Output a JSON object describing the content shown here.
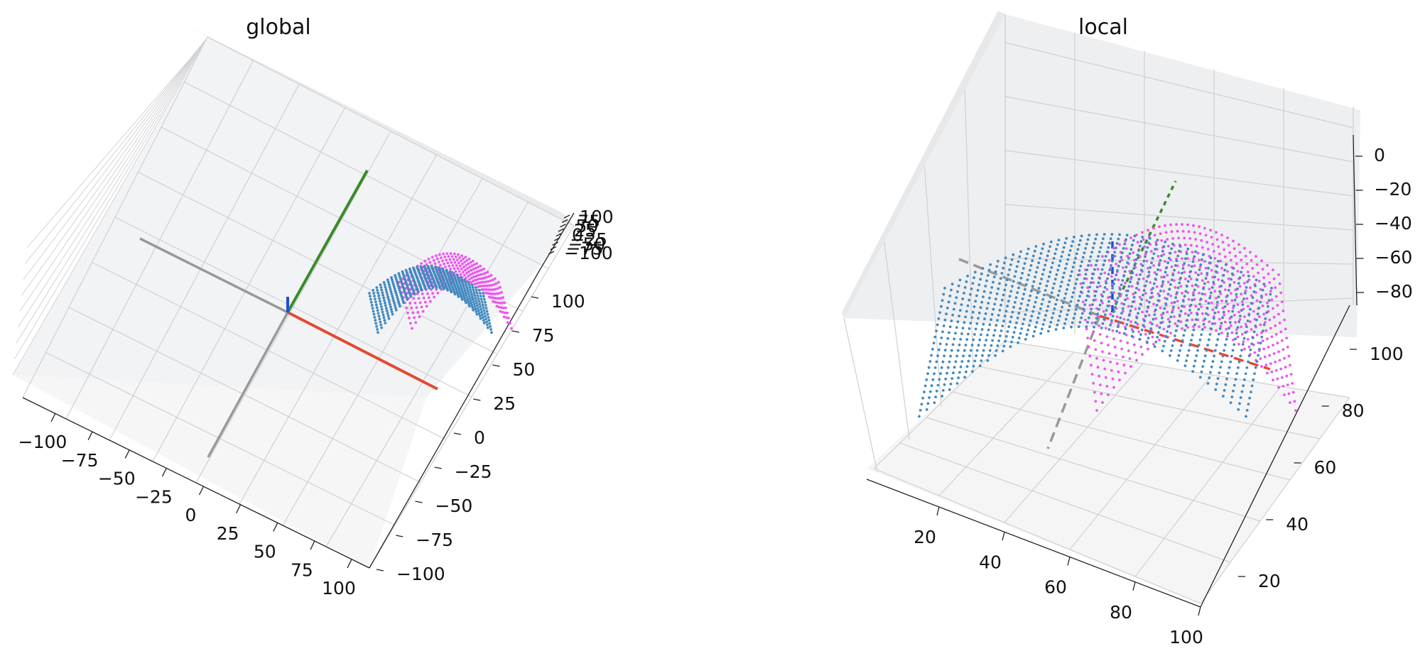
{
  "chart_data": [
    {
      "type": "scatter",
      "title": "global",
      "projection": "3d",
      "grid": true,
      "x_ticks": [
        "−100",
        "−75",
        "−50",
        "−25",
        "0",
        "25",
        "50",
        "75",
        "100"
      ],
      "y_ticks": [
        "−100",
        "−75",
        "−50",
        "−25",
        "0",
        "25",
        "50",
        "75",
        "100"
      ],
      "z_ticks": [
        "−100",
        "−75",
        "−50",
        "−25",
        "0",
        "25",
        "50",
        "75",
        "100"
      ],
      "xlim": [
        -100,
        100
      ],
      "ylim": [
        -100,
        100
      ],
      "zlim": [
        -100,
        100
      ],
      "axis_lines": [
        {
          "color": "#e24a33",
          "style": "solid"
        },
        {
          "color": "#3a8a2a",
          "style": "solid"
        },
        {
          "color": "#1f4fd6",
          "style": "solid"
        },
        {
          "color": "#999999",
          "style": "solid"
        }
      ],
      "series": [
        {
          "color": "#ee55ee",
          "marker": "point"
        },
        {
          "color": "#4289bf",
          "marker": "point"
        }
      ]
    },
    {
      "type": "scatter",
      "title": "local",
      "projection": "3d",
      "grid": true,
      "x_ticks": [
        "20",
        "40",
        "60",
        "80",
        "100"
      ],
      "y_ticks": [
        "20",
        "40",
        "60",
        "80",
        "100"
      ],
      "z_ticks": [
        "0",
        "−20",
        "−40",
        "−60",
        "−80"
      ],
      "xlim": [
        0,
        100
      ],
      "ylim": [
        0,
        100
      ],
      "zlim": [
        -90,
        10
      ],
      "axis_lines": [
        {
          "color": "#e24a33",
          "style": "dashed"
        },
        {
          "color": "#3a8a2a",
          "style": "dashed"
        },
        {
          "color": "#1f4fd6",
          "style": "dashed"
        },
        {
          "color": "#999999",
          "style": "dashed"
        }
      ],
      "series": [
        {
          "color": "#ee55ee",
          "marker": "point"
        },
        {
          "color": "#4289bf",
          "marker": "point"
        }
      ]
    }
  ]
}
